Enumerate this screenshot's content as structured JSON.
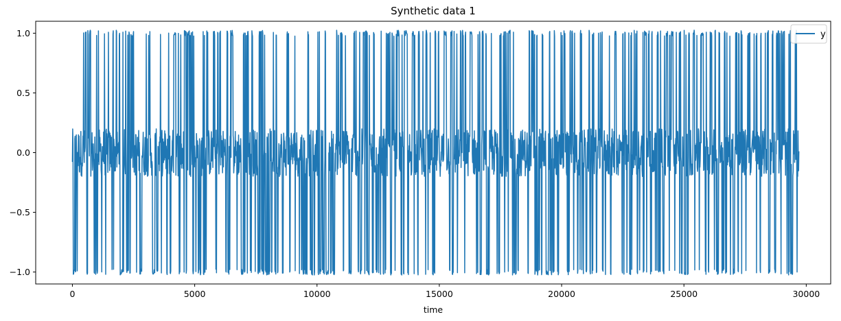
{
  "chart_data": {
    "type": "line",
    "title": "Synthetic data 1",
    "xlabel": "time",
    "ylabel": "",
    "xlim": [
      -1500,
      31000
    ],
    "ylim": [
      -1.1,
      1.1
    ],
    "xticks": [
      0,
      5000,
      10000,
      15000,
      20000,
      25000,
      30000
    ],
    "xtick_labels": [
      "0",
      "5000",
      "10000",
      "15000",
      "20000",
      "25000",
      "30000"
    ],
    "yticks": [
      -1.0,
      -0.5,
      0.0,
      0.5,
      1.0
    ],
    "ytick_labels": [
      "−1.0",
      "−0.5",
      "0.0",
      "0.5",
      "1.0"
    ],
    "legend": {
      "position": "top-right",
      "entries": [
        "y"
      ]
    },
    "grid": false,
    "series": [
      {
        "name": "y",
        "color": "#1f77b4",
        "x_range": [
          0,
          29700
        ],
        "levels": [
          -1.0,
          0.0,
          1.0
        ],
        "noise_band_around_zero": 0.2
      }
    ]
  }
}
